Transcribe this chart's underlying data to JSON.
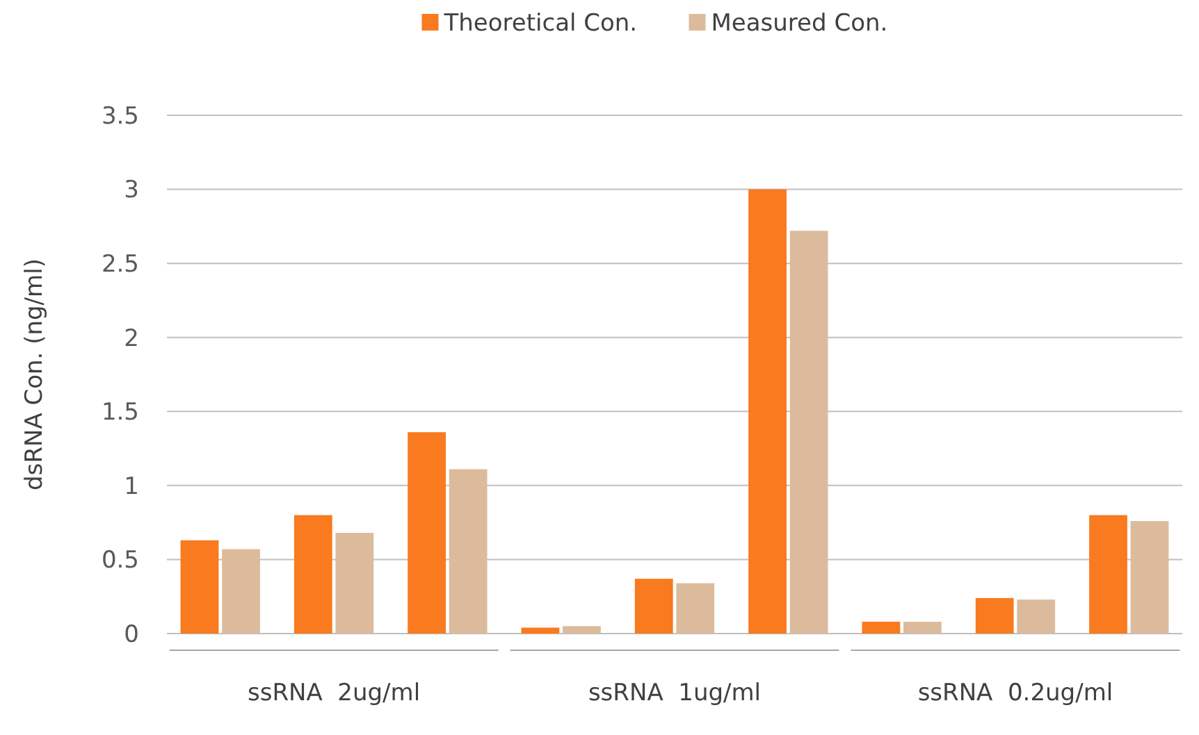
{
  "chart_data": {
    "type": "bar",
    "ylabel": "dsRNA Con. (ng/ml)",
    "categories": [
      null,
      "ssRNA  2ug/ml",
      null,
      null,
      "ssRNA  1ug/ml",
      null,
      null,
      "ssRNA  0.2ug/ml",
      null
    ],
    "series": [
      {
        "name": "Theoretical Con.",
        "color": "#f97a1f",
        "values": [
          0.63,
          0.8,
          1.36,
          0.04,
          0.37,
          3.0,
          0.08,
          0.24,
          0.8
        ]
      },
      {
        "name": "Measured Con.",
        "color": "#dcbb9c",
        "values": [
          0.57,
          0.68,
          1.11,
          0.05,
          0.34,
          2.72,
          0.08,
          0.23,
          0.76
        ]
      }
    ],
    "ylim": [
      0,
      3.5
    ],
    "yticks": [
      0,
      0.5,
      1,
      1.5,
      2,
      2.5,
      3,
      3.5
    ],
    "grid": "y",
    "legend": "top"
  }
}
